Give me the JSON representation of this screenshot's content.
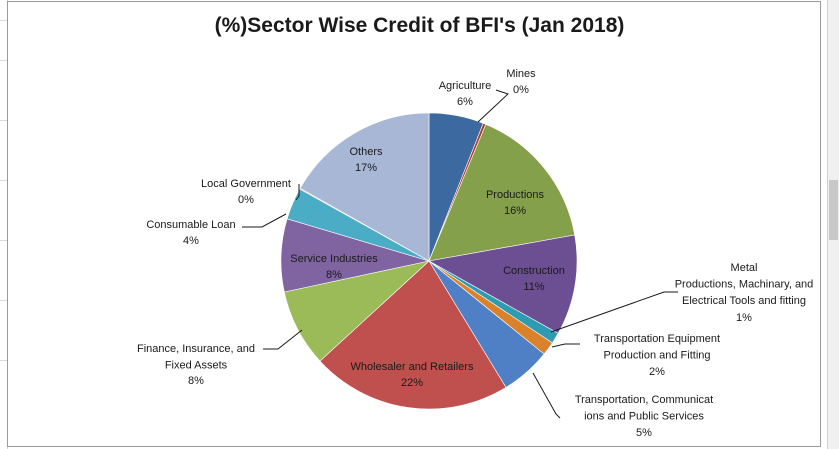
{
  "chart_data": {
    "type": "pie",
    "title": "(%)Sector Wise Credit of BFI's (Jan 2018)",
    "slices": [
      {
        "name": "Agriculture",
        "label": "Agriculture",
        "pct": "6%",
        "value": 6.0,
        "color": "#3c6aa0"
      },
      {
        "name": "Mines",
        "label": "Mines",
        "pct": "0%",
        "value": 0.3,
        "color": "#b03a2e"
      },
      {
        "name": "Productions",
        "label": "Productions",
        "pct": "16%",
        "value": 16.0,
        "color": "#84a04a"
      },
      {
        "name": "Construction",
        "label": "Construction",
        "pct": "11%",
        "value": 11.0,
        "color": "#6b4f92"
      },
      {
        "name": "Metal Productions, Machinary, and Electrical Tools and fitting",
        "label": "Metal Productions, Machinary, and Electrical Tools and fitting",
        "pct": "1%",
        "value": 1.2,
        "color": "#2e9bb3"
      },
      {
        "name": "Transportation Equipment Production and Fitting",
        "label": "Transportation Equipment Production and Fitting",
        "pct": "2%",
        "value": 1.5,
        "color": "#d9822b"
      },
      {
        "name": "Transportation, Communications and Public Services",
        "label": "Transportation, Communications and Public Services",
        "pct": "5%",
        "value": 5.5,
        "color": "#4f7fc4"
      },
      {
        "name": "Wholesaler and Retailers",
        "label": "Wholesaler and Retailers",
        "pct": "22%",
        "value": 22.0,
        "color": "#c0504d"
      },
      {
        "name": "Finance, Insurance, and Fixed Assets",
        "label": "Finance, Insurance, and Fixed Assets",
        "pct": "8%",
        "value": 8.5,
        "color": "#9bbb59"
      },
      {
        "name": "Service Industries",
        "label": "Service Industries",
        "pct": "8%",
        "value": 8.0,
        "color": "#8064a2"
      },
      {
        "name": "Consumable Loan",
        "label": "Consumable Loan",
        "pct": "4%",
        "value": 3.5,
        "color": "#4bacc6"
      },
      {
        "name": "Local Government",
        "label": "Local Government",
        "pct": "0%",
        "value": 0.1,
        "color": "#f79646"
      },
      {
        "name": "Others",
        "label": "Others",
        "pct": "17%",
        "value": 16.9,
        "color": "#a9b7d6"
      }
    ]
  }
}
